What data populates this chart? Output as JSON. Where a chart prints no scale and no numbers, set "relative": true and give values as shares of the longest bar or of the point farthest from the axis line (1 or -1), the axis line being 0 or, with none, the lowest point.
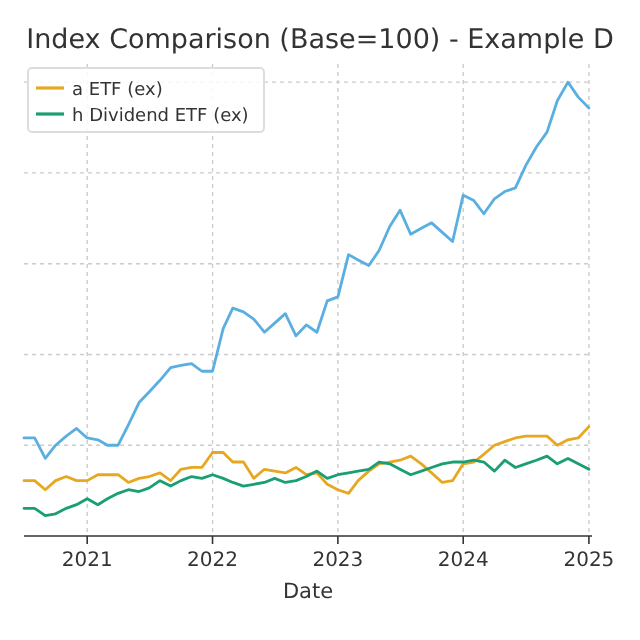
{
  "chart_data": {
    "type": "line",
    "title": "Index Comparison (Base=100) - Example D",
    "xlabel": "Date",
    "relative": true,
    "grid": true,
    "legend": "top left",
    "line_style": "solid",
    "x": [
      "2020-07",
      "2020-08",
      "2020-09",
      "2020-10",
      "2020-11",
      "2020-12",
      "2021-01",
      "2021-02",
      "2021-03",
      "2021-04",
      "2021-05",
      "2021-06",
      "2021-07",
      "2021-08",
      "2021-09",
      "2021-10",
      "2021-11",
      "2021-12",
      "2022-01",
      "2022-02",
      "2022-03",
      "2022-04",
      "2022-05",
      "2022-06",
      "2022-07",
      "2022-08",
      "2022-09",
      "2022-10",
      "2022-11",
      "2022-12",
      "2023-01",
      "2023-02",
      "2023-03",
      "2023-04",
      "2023-05",
      "2023-06",
      "2023-07",
      "2023-08",
      "2023-09",
      "2023-10",
      "2023-11",
      "2023-12",
      "2024-01",
      "2024-02",
      "2024-03",
      "2024-04",
      "2024-05",
      "2024-06",
      "2024-07",
      "2024-08",
      "2024-09",
      "2024-10",
      "2024-11",
      "2024-12",
      "2025-01"
    ],
    "xlim": [
      "2020-07-01",
      "2025-01-10"
    ],
    "xticks": [
      "2021",
      "2022",
      "2023",
      "2024",
      "2025"
    ],
    "series": [
      {
        "color": "#5aafe0",
        "values": [
          0.216,
          0.216,
          0.171,
          0.2,
          0.22,
          0.237,
          0.216,
          0.212,
          0.2,
          0.2,
          0.245,
          0.294,
          0.318,
          0.343,
          0.371,
          0.376,
          0.38,
          0.363,
          0.363,
          0.457,
          0.502,
          0.494,
          0.478,
          0.449,
          0.469,
          0.49,
          0.441,
          0.465,
          0.449,
          0.518,
          0.527,
          0.62,
          0.608,
          0.596,
          0.629,
          0.682,
          0.718,
          0.665,
          0.678,
          0.69,
          0.669,
          0.649,
          0.751,
          0.739,
          0.71,
          0.743,
          0.759,
          0.767,
          0.816,
          0.857,
          0.89,
          0.959,
          1,
          0.967,
          0.943
        ]
      },
      {
        "name": "a ETF (ex)",
        "color": "#e6a820",
        "values": [
          0.122,
          0.122,
          0.102,
          0.122,
          0.131,
          0.122,
          0.122,
          0.135,
          0.135,
          0.135,
          0.118,
          0.127,
          0.131,
          0.139,
          0.122,
          0.147,
          0.151,
          0.151,
          0.184,
          0.184,
          0.163,
          0.163,
          0.127,
          0.147,
          0.143,
          0.139,
          0.151,
          0.135,
          0.139,
          0.114,
          0.102,
          0.094,
          0.122,
          0.143,
          0.159,
          0.163,
          0.167,
          0.176,
          0.159,
          0.139,
          0.118,
          0.122,
          0.159,
          0.163,
          0.18,
          0.2,
          0.208,
          0.216,
          0.22,
          0.22,
          0.22,
          0.2,
          0.212,
          0.216,
          0.241
        ]
      },
      {
        "name": "h Dividend ETF (ex)",
        "color": "#1a9e73",
        "values": [
          0.061,
          0.061,
          0.045,
          0.049,
          0.061,
          0.069,
          0.082,
          0.069,
          0.082,
          0.094,
          0.102,
          0.098,
          0.106,
          0.122,
          0.11,
          0.122,
          0.131,
          0.127,
          0.135,
          0.127,
          0.118,
          0.11,
          0.114,
          0.118,
          0.127,
          0.118,
          0.122,
          0.131,
          0.143,
          0.127,
          0.135,
          0.139,
          0.143,
          0.147,
          0.163,
          0.159,
          0.147,
          0.135,
          0.143,
          0.151,
          0.159,
          0.163,
          0.163,
          0.167,
          0.163,
          0.143,
          0.167,
          0.151,
          0.159,
          0.167,
          0.176,
          0.159,
          0.171,
          0.159,
          0.147
        ]
      }
    ]
  }
}
